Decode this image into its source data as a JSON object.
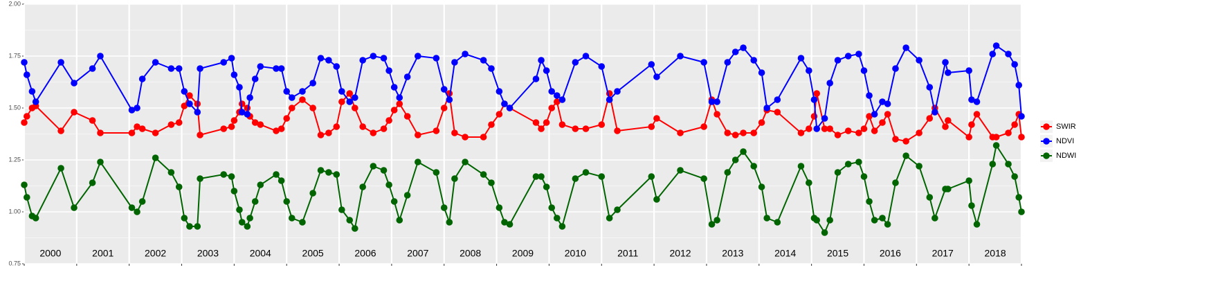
{
  "chart_data": {
    "type": "line",
    "x": [
      2000.0,
      2000.05,
      2000.15,
      2000.22,
      2000.7,
      2000.95,
      2001.3,
      2001.45,
      2002.05,
      2002.15,
      2002.25,
      2002.5,
      2002.8,
      2002.95,
      2003.05,
      2003.15,
      2003.3,
      2003.35,
      2003.8,
      2003.95,
      2004.0,
      2004.1,
      2004.15,
      2004.25,
      2004.3,
      2004.4,
      2004.5,
      2004.8,
      2004.9,
      2005.0,
      2005.1,
      2005.3,
      2005.5,
      2005.65,
      2005.8,
      2005.95,
      2006.05,
      2006.2,
      2006.3,
      2006.45,
      2006.65,
      2006.85,
      2006.95,
      2007.05,
      2007.15,
      2007.3,
      2007.5,
      2007.85,
      2008.0,
      2008.1,
      2008.2,
      2008.4,
      2008.75,
      2008.9,
      2009.05,
      2009.15,
      2009.25,
      2009.75,
      2009.85,
      2009.95,
      2010.05,
      2010.15,
      2010.25,
      2010.5,
      2010.7,
      2011.0,
      2011.15,
      2011.3,
      2011.95,
      2012.05,
      2012.5,
      2012.95,
      2013.1,
      2013.2,
      2013.4,
      2013.55,
      2013.7,
      2013.9,
      2014.05,
      2014.15,
      2014.35,
      2014.8,
      2014.95,
      2015.05,
      2015.1,
      2015.25,
      2015.35,
      2015.5,
      2015.7,
      2015.9,
      2016.0,
      2016.1,
      2016.2,
      2016.35,
      2016.45,
      2016.6,
      2016.8,
      2017.05,
      2017.25,
      2017.35,
      2017.55,
      2017.6,
      2018.0,
      2018.05,
      2018.15,
      2018.45,
      2018.52,
      2018.75,
      2018.87,
      2018.95,
      2019.0
    ],
    "series": [
      {
        "name": "SWIR",
        "color": "#ff0000",
        "values": [
          1.43,
          1.46,
          1.5,
          1.51,
          1.39,
          1.48,
          1.44,
          1.38,
          1.38,
          1.41,
          1.4,
          1.38,
          1.42,
          1.43,
          1.51,
          1.56,
          1.52,
          1.37,
          1.4,
          1.41,
          1.44,
          1.48,
          1.52,
          1.5,
          1.46,
          1.43,
          1.42,
          1.39,
          1.4,
          1.45,
          1.5,
          1.54,
          1.5,
          1.37,
          1.38,
          1.41,
          1.53,
          1.57,
          1.5,
          1.41,
          1.38,
          1.4,
          1.44,
          1.49,
          1.52,
          1.46,
          1.37,
          1.39,
          1.5,
          1.57,
          1.38,
          1.36,
          1.36,
          1.42,
          1.47,
          1.52,
          1.5,
          1.43,
          1.4,
          1.43,
          1.5,
          1.53,
          1.42,
          1.4,
          1.4,
          1.42,
          1.57,
          1.39,
          1.41,
          1.45,
          1.38,
          1.41,
          1.54,
          1.47,
          1.38,
          1.37,
          1.38,
          1.38,
          1.43,
          1.49,
          1.48,
          1.38,
          1.4,
          1.46,
          1.57,
          1.4,
          1.4,
          1.37,
          1.39,
          1.38,
          1.4,
          1.46,
          1.39,
          1.43,
          1.47,
          1.35,
          1.34,
          1.38,
          1.45,
          1.5,
          1.41,
          1.44,
          1.36,
          1.42,
          1.47,
          1.36,
          1.36,
          1.38,
          1.42,
          1.47,
          1.36
        ]
      },
      {
        "name": "NDVI",
        "color": "#0000ff",
        "values": [
          1.72,
          1.66,
          1.58,
          1.53,
          1.72,
          1.62,
          1.69,
          1.75,
          1.49,
          1.5,
          1.64,
          1.72,
          1.69,
          1.69,
          1.58,
          1.52,
          1.48,
          1.69,
          1.72,
          1.74,
          1.66,
          1.6,
          1.48,
          1.47,
          1.55,
          1.64,
          1.7,
          1.69,
          1.69,
          1.58,
          1.55,
          1.58,
          1.62,
          1.74,
          1.73,
          1.7,
          1.58,
          1.53,
          1.55,
          1.73,
          1.75,
          1.74,
          1.68,
          1.6,
          1.55,
          1.65,
          1.75,
          1.74,
          1.59,
          1.54,
          1.72,
          1.76,
          1.73,
          1.69,
          1.58,
          1.52,
          1.5,
          1.64,
          1.73,
          1.68,
          1.58,
          1.56,
          1.54,
          1.72,
          1.75,
          1.7,
          1.54,
          1.58,
          1.71,
          1.65,
          1.75,
          1.72,
          1.53,
          1.53,
          1.72,
          1.77,
          1.79,
          1.73,
          1.67,
          1.5,
          1.54,
          1.74,
          1.68,
          1.54,
          1.4,
          1.45,
          1.62,
          1.73,
          1.75,
          1.76,
          1.68,
          1.56,
          1.47,
          1.53,
          1.52,
          1.69,
          1.79,
          1.73,
          1.6,
          1.48,
          1.72,
          1.67,
          1.68,
          1.54,
          1.53,
          1.76,
          1.8,
          1.76,
          1.71,
          1.61,
          1.46
        ]
      },
      {
        "name": "NDWI",
        "color": "#006400",
        "values": [
          1.13,
          1.07,
          0.98,
          0.97,
          1.21,
          1.02,
          1.14,
          1.24,
          1.02,
          1.0,
          1.05,
          1.26,
          1.19,
          1.12,
          0.97,
          0.93,
          0.93,
          1.16,
          1.18,
          1.17,
          1.1,
          1.01,
          0.95,
          0.93,
          0.97,
          1.05,
          1.13,
          1.18,
          1.15,
          1.05,
          0.97,
          0.95,
          1.09,
          1.2,
          1.19,
          1.18,
          1.01,
          0.96,
          0.92,
          1.12,
          1.22,
          1.2,
          1.13,
          1.05,
          0.96,
          1.08,
          1.24,
          1.19,
          1.02,
          0.95,
          1.16,
          1.24,
          1.18,
          1.14,
          1.02,
          0.95,
          0.94,
          1.17,
          1.17,
          1.12,
          1.02,
          0.97,
          0.93,
          1.16,
          1.19,
          1.17,
          0.97,
          1.01,
          1.17,
          1.06,
          1.2,
          1.16,
          0.94,
          0.96,
          1.19,
          1.25,
          1.29,
          1.22,
          1.12,
          0.97,
          0.95,
          1.22,
          1.14,
          0.97,
          0.96,
          0.9,
          0.96,
          1.19,
          1.23,
          1.24,
          1.17,
          1.05,
          0.96,
          0.97,
          0.94,
          1.14,
          1.27,
          1.22,
          1.07,
          0.97,
          1.11,
          1.11,
          1.15,
          1.03,
          0.94,
          1.23,
          1.32,
          1.23,
          1.17,
          1.07,
          1.0
        ]
      }
    ],
    "xlim": [
      2000,
      2019
    ],
    "xticks": [
      2000,
      2001,
      2002,
      2003,
      2004,
      2005,
      2006,
      2007,
      2008,
      2009,
      2010,
      2011,
      2012,
      2013,
      2014,
      2015,
      2016,
      2017,
      2018,
      2019
    ],
    "ylim": [
      0.75,
      2
    ],
    "yticks": [
      0.75,
      {
        "value": 1,
        "label": "1.00"
      },
      1.25,
      {
        "value": 1.5,
        "label": "1.50"
      },
      1.75,
      {
        "value": 2,
        "label": "2.00"
      }
    ],
    "annotations": [
      {
        "label": "2000",
        "x": 2000.5
      },
      {
        "label": "2001",
        "x": 2001.5
      },
      {
        "label": "2002",
        "x": 2002.5
      },
      {
        "label": "2003",
        "x": 2003.5
      },
      {
        "label": "2004",
        "x": 2004.5
      },
      {
        "label": "2005",
        "x": 2005.5
      },
      {
        "label": "2006",
        "x": 2006.5
      },
      {
        "label": "2007",
        "x": 2007.5
      },
      {
        "label": "2008",
        "x": 2008.5
      },
      {
        "label": "2009",
        "x": 2009.5
      },
      {
        "label": "2010",
        "x": 2010.5
      },
      {
        "label": "2011",
        "x": 2011.5
      },
      {
        "label": "2012",
        "x": 2012.5
      },
      {
        "label": "2013",
        "x": 2013.5
      },
      {
        "label": "2014",
        "x": 2014.5
      },
      {
        "label": "2015",
        "x": 2015.5
      },
      {
        "label": "2016",
        "x": 2016.5
      },
      {
        "label": "2017",
        "x": 2017.5
      },
      {
        "label": "2018",
        "x": 2018.5
      }
    ],
    "grid": true,
    "legend": "right"
  }
}
